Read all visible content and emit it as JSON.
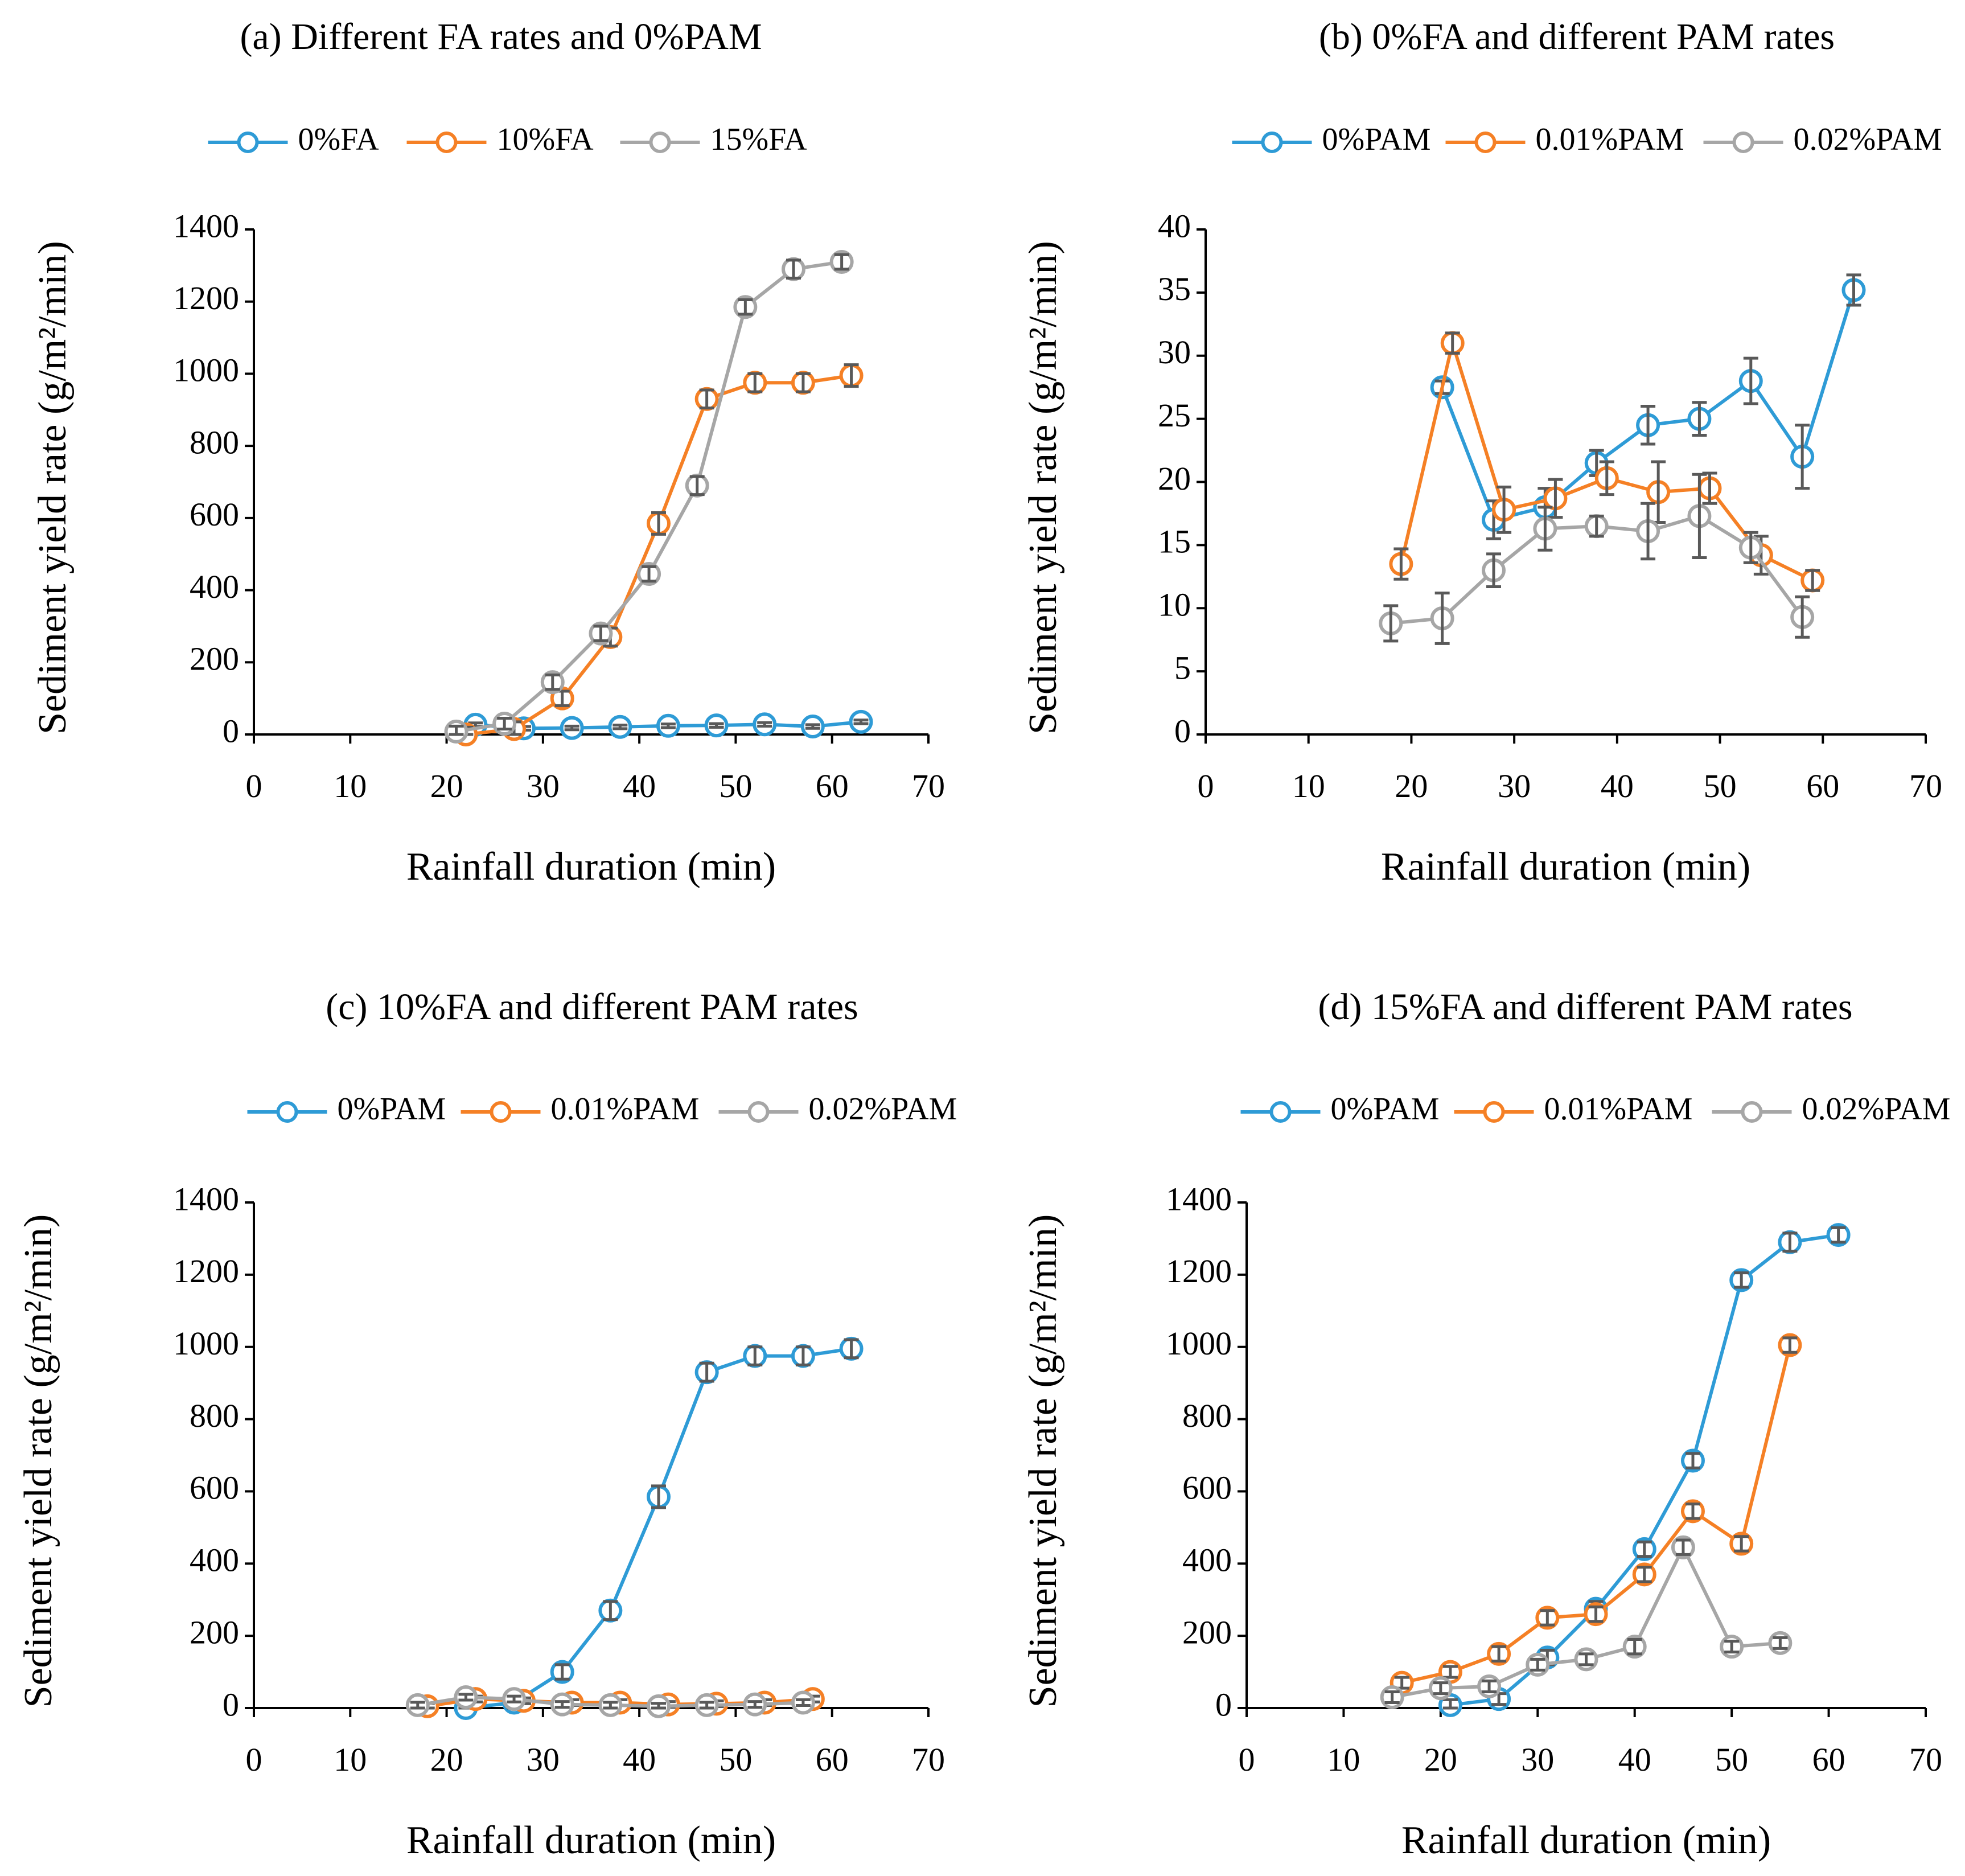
{
  "colors": {
    "series1": "#2E9BD6",
    "series2": "#F58025",
    "series3": "#A6A6A6",
    "axis": "#000000",
    "errorbar": "#595959"
  },
  "chart_data": [
    {
      "type": "line",
      "title": "(a) Different FA rates and 0%PAM",
      "xlabel": "Rainfall duration (min)",
      "ylabel": "Sediment yield rate (g/m²/min)",
      "xlim": [
        0,
        70
      ],
      "ylim": [
        0,
        1400
      ],
      "xticks": [
        "0",
        "10",
        "20",
        "30",
        "40",
        "50",
        "60",
        "70"
      ],
      "yticks": [
        "0",
        "200",
        "400",
        "600",
        "800",
        "1000",
        "1200",
        "1400"
      ],
      "legend": "top",
      "series": [
        {
          "name": "0%FA",
          "x": [
            23,
            28,
            33,
            38,
            43,
            48,
            53,
            58,
            63
          ],
          "y": [
            27,
            17,
            18,
            21,
            24,
            25,
            28,
            22,
            35
          ],
          "err": [
            5,
            5,
            5,
            5,
            5,
            5,
            5,
            5,
            5
          ]
        },
        {
          "name": "10%FA",
          "x": [
            22,
            27,
            32,
            37,
            42,
            47,
            52,
            57,
            62
          ],
          "y": [
            0,
            15,
            100,
            270,
            585,
            930,
            975,
            975,
            995
          ],
          "err": [
            20,
            20,
            20,
            25,
            30,
            25,
            25,
            25,
            30
          ]
        },
        {
          "name": "15%FA",
          "x": [
            21,
            26,
            31,
            36,
            41,
            46,
            51,
            56,
            61
          ],
          "y": [
            8,
            30,
            145,
            280,
            445,
            690,
            1185,
            1290,
            1310
          ],
          "err": [
            15,
            15,
            20,
            20,
            20,
            25,
            20,
            25,
            20
          ]
        }
      ]
    },
    {
      "type": "line",
      "title": "(b) 0%FA and different PAM rates",
      "xlabel": "Rainfall duration (min)",
      "ylabel": "Sediment yield rate (g/m²/min)",
      "xlim": [
        0,
        70
      ],
      "ylim": [
        0,
        40
      ],
      "xticks": [
        "0",
        "10",
        "20",
        "30",
        "40",
        "50",
        "60",
        "70"
      ],
      "yticks": [
        "0",
        "5",
        "10",
        "15",
        "20",
        "25",
        "30",
        "35",
        "40"
      ],
      "legend": "top",
      "series": [
        {
          "name": "0%PAM",
          "x": [
            23,
            28,
            33,
            38,
            43,
            48,
            53,
            58,
            63
          ],
          "y": [
            27.5,
            17,
            18,
            21.5,
            24.5,
            25,
            28,
            22,
            35.2
          ],
          "err": [
            0.5,
            1.5,
            1.5,
            1,
            1.5,
            1.3,
            1.8,
            2.5,
            1.2
          ]
        },
        {
          "name": "0.01%PAM",
          "x": [
            19,
            24,
            29,
            34,
            39,
            44,
            49,
            54,
            59
          ],
          "y": [
            13.5,
            31,
            17.8,
            18.7,
            20.3,
            19.2,
            19.5,
            14.2,
            12.2
          ],
          "err": [
            1.2,
            0.8,
            1.8,
            1.5,
            1.3,
            2.4,
            1.2,
            1.5,
            0.8
          ]
        },
        {
          "name": "0.02%PAM",
          "x": [
            18,
            23,
            28,
            33,
            38,
            43,
            48,
            53,
            58
          ],
          "y": [
            8.8,
            9.2,
            13,
            16.3,
            16.5,
            16.1,
            17.3,
            14.8,
            9.3
          ],
          "err": [
            1.4,
            2,
            1.3,
            1.7,
            0.8,
            2.2,
            3.3,
            1.2,
            1.6
          ]
        }
      ]
    },
    {
      "type": "line",
      "title": "(c) 10%FA and different PAM rates",
      "xlabel": "Rainfall duration (min)",
      "ylabel": "Sediment yield rate (g/m²/min)",
      "xlim": [
        0,
        70
      ],
      "ylim": [
        0,
        1400
      ],
      "xticks": [
        "0",
        "10",
        "20",
        "30",
        "40",
        "50",
        "60",
        "70"
      ],
      "yticks": [
        "0",
        "200",
        "400",
        "600",
        "800",
        "1000",
        "1200",
        "1400"
      ],
      "legend": "top",
      "series": [
        {
          "name": "0%PAM",
          "x": [
            22,
            27,
            32,
            37,
            42,
            47,
            52,
            57,
            62
          ],
          "y": [
            0,
            15,
            100,
            270,
            585,
            930,
            975,
            975,
            995
          ],
          "err": [
            15,
            15,
            20,
            25,
            30,
            25,
            25,
            25,
            25
          ]
        },
        {
          "name": "0.01%PAM",
          "x": [
            18,
            23,
            28,
            33,
            38,
            43,
            48,
            53,
            58
          ],
          "y": [
            5,
            25,
            20,
            15,
            15,
            10,
            12,
            15,
            25
          ],
          "err": [
            8,
            8,
            8,
            8,
            8,
            8,
            8,
            8,
            8
          ]
        },
        {
          "name": "0.02%PAM",
          "x": [
            17,
            22,
            27,
            32,
            37,
            42,
            47,
            52,
            57
          ],
          "y": [
            8,
            30,
            25,
            10,
            8,
            5,
            8,
            10,
            15
          ],
          "err": [
            8,
            8,
            8,
            8,
            8,
            8,
            8,
            8,
            8
          ]
        }
      ]
    },
    {
      "type": "line",
      "title": "(d) 15%FA and different PAM rates",
      "xlabel": "Rainfall duration (min)",
      "ylabel": "Sediment yield rate (g/m²/min)",
      "xlim": [
        0,
        70
      ],
      "ylim": [
        0,
        1400
      ],
      "xticks": [
        "0",
        "10",
        "20",
        "30",
        "40",
        "50",
        "60",
        "70"
      ],
      "yticks": [
        "0",
        "200",
        "400",
        "600",
        "800",
        "1000",
        "1200",
        "1400"
      ],
      "legend": "top",
      "series": [
        {
          "name": "0%PAM",
          "x": [
            21,
            26,
            31,
            36,
            41,
            46,
            51,
            56,
            61
          ],
          "y": [
            8,
            25,
            140,
            275,
            440,
            685,
            1185,
            1290,
            1310
          ],
          "err": [
            15,
            15,
            20,
            20,
            20,
            20,
            20,
            25,
            20
          ]
        },
        {
          "name": "0.01%PAM",
          "x": [
            16,
            21,
            26,
            31,
            36,
            41,
            46,
            51,
            56
          ],
          "y": [
            70,
            100,
            150,
            250,
            260,
            370,
            545,
            455,
            1005
          ],
          "err": [
            15,
            15,
            20,
            20,
            20,
            20,
            20,
            20,
            20
          ]
        },
        {
          "name": "0.02%PAM",
          "x": [
            15,
            20,
            25,
            30,
            35,
            40,
            45,
            50,
            55
          ],
          "y": [
            30,
            55,
            60,
            120,
            135,
            170,
            445,
            170,
            180
          ],
          "err": [
            15,
            15,
            15,
            15,
            15,
            20,
            20,
            15,
            15
          ]
        }
      ]
    }
  ]
}
